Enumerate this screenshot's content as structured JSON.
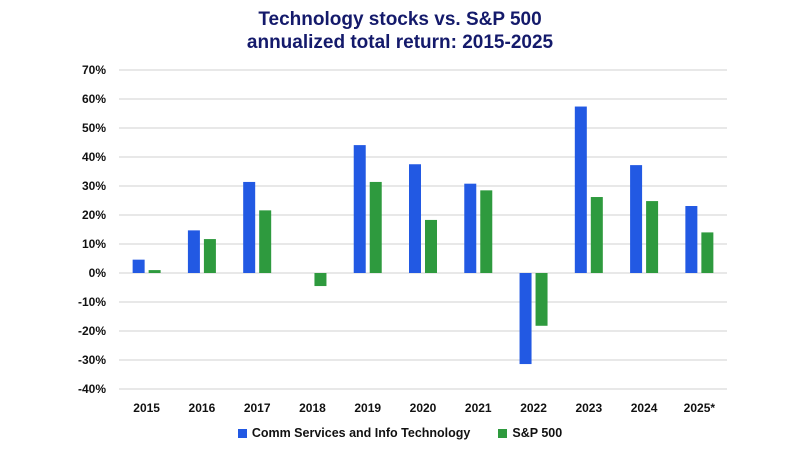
{
  "chart_data": {
    "type": "bar",
    "title": "Technology stocks vs. S&P 500",
    "subtitle": "annualized total return: 2015-2025",
    "categories": [
      "2015",
      "2016",
      "2017",
      "2018",
      "2019",
      "2020",
      "2021",
      "2022",
      "2023",
      "2024",
      "2025*"
    ],
    "series": [
      {
        "name": "Comm Services and Info Technology",
        "color": "#2259e3",
        "values": [
          4.6,
          14.7,
          31.4,
          0,
          44.1,
          37.5,
          30.8,
          -31.4,
          57.4,
          37.2,
          23.1
        ]
      },
      {
        "name": "S&P 500",
        "color": "#2e9a3e",
        "values": [
          1.0,
          11.7,
          21.6,
          -4.5,
          31.4,
          18.3,
          28.5,
          -18.2,
          26.2,
          24.8,
          14.0
        ]
      }
    ],
    "ylim": [
      -40,
      70
    ],
    "yticks": [
      "70%",
      "60%",
      "50%",
      "40%",
      "30%",
      "20%",
      "10%",
      "0%",
      "-10%",
      "-20%",
      "-30%",
      "-40%"
    ],
    "ytick_values": [
      70,
      60,
      50,
      40,
      30,
      20,
      10,
      0,
      -10,
      -20,
      -30,
      -40
    ],
    "grid": true,
    "legend_position": "bottom",
    "xlabel": "",
    "ylabel": ""
  }
}
